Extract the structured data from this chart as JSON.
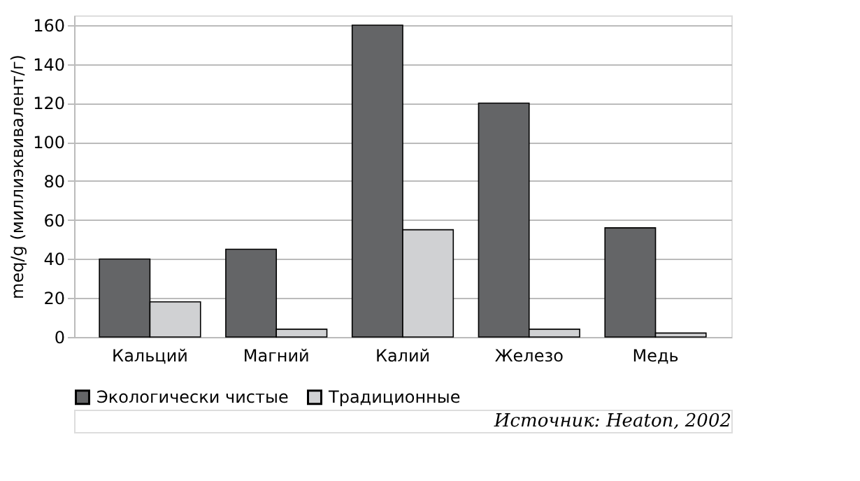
{
  "chart_data": {
    "type": "bar",
    "ylabel": "meq/g (миллиэквивалент/г)",
    "categories": [
      "Кальций",
      "Магний",
      "Калий",
      "Железо",
      "Медь"
    ],
    "series": [
      {
        "name": "Экологически чистые",
        "color": "#646567",
        "values": [
          40,
          45,
          160,
          120,
          56
        ]
      },
      {
        "name": "Традиционные",
        "color": "#d0d1d3",
        "values": [
          18,
          4,
          55,
          4,
          2
        ]
      }
    ],
    "ylim": [
      0,
      165
    ],
    "yticks": [
      0,
      20,
      40,
      60,
      80,
      100,
      120,
      140,
      160
    ],
    "grid": "y",
    "legend": "bottom left",
    "annotations": [
      "Источник: Heaton, 2002"
    ]
  }
}
